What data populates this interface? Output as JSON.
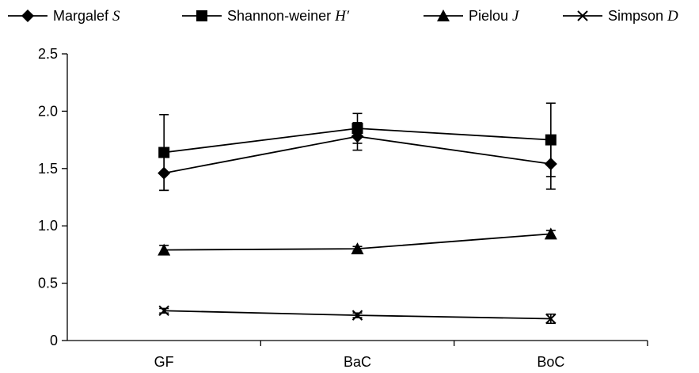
{
  "chart_data": {
    "type": "line",
    "categories": [
      "GF",
      "BaC",
      "BoC"
    ],
    "ylim": [
      0,
      2.5
    ],
    "yticks": [
      "0",
      "0.5",
      "1.0",
      "1.5",
      "2.0",
      "2.5"
    ],
    "ytick_values": [
      0,
      0.5,
      1.0,
      1.5,
      2.0,
      2.5
    ],
    "grid": false,
    "legend_position": "top",
    "series": [
      {
        "name": "Margalef ",
        "name_italic": "S",
        "marker": "diamond",
        "values": [
          1.46,
          1.78,
          1.54
        ],
        "errors": [
          0.15,
          0.12,
          0.22
        ]
      },
      {
        "name": "Shannon-weiner ",
        "name_italic": "H′",
        "marker": "square",
        "values": [
          1.64,
          1.85,
          1.75
        ],
        "errors": [
          0.33,
          0.13,
          0.32
        ]
      },
      {
        "name": "Pielou ",
        "name_italic": "J",
        "marker": "triangle",
        "values": [
          0.79,
          0.8,
          0.93
        ],
        "errors": [
          0.04,
          0.02,
          0.03
        ]
      },
      {
        "name": "Simpson ",
        "name_italic": "D",
        "marker": "cross",
        "values": [
          0.26,
          0.22,
          0.19
        ],
        "errors": [
          0.02,
          0.02,
          0.04
        ]
      }
    ]
  }
}
